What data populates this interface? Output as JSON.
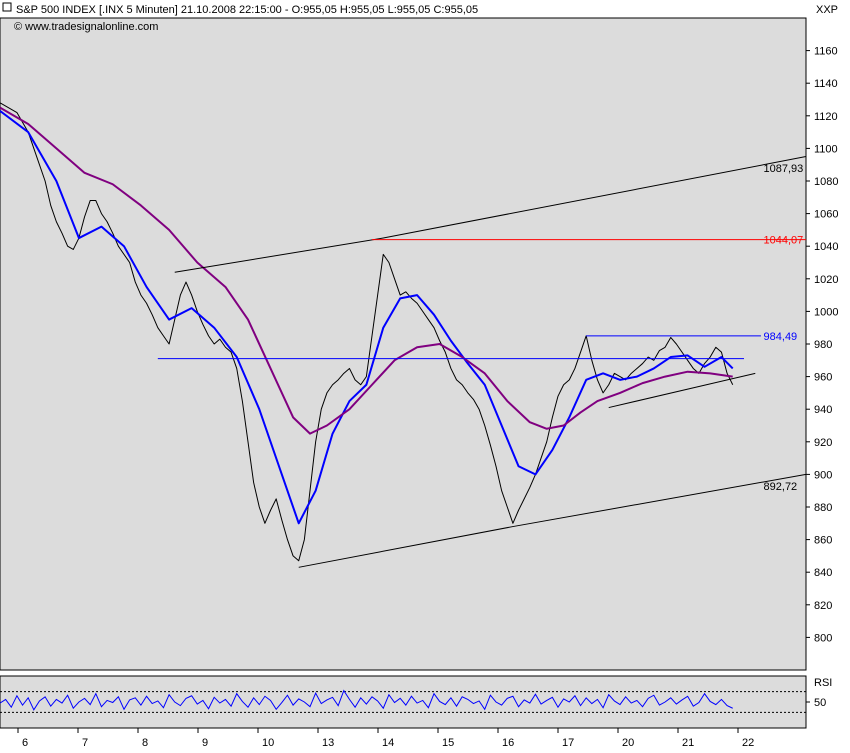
{
  "header": {
    "title": "S&P 500 INDEX [.INX  5 Minuten] 21.10.2008 22:15:00 - O:955,05 H:955,05 L:955,05 C:955,05",
    "source": "© www.tradesignalonline.com",
    "exchange": "XXP"
  },
  "colors": {
    "background": "#ffffff",
    "panel": "#dcdcdc",
    "price": "#000000",
    "fast_ma": "#0000ff",
    "slow_ma": "#800080",
    "resistance": "#ff0000",
    "neckline": "#0000ff"
  },
  "chart_data": [
    {
      "type": "line",
      "title": "S&P 500 INDEX [.INX  5 Minuten]",
      "ylim": [
        780,
        1180
      ],
      "y_ticks": [
        800,
        820,
        840,
        860,
        880,
        900,
        920,
        940,
        960,
        980,
        1000,
        1020,
        1040,
        1060,
        1080,
        1100,
        1120,
        1140,
        1160
      ],
      "x_tick_labels": [
        "6",
        "7",
        "8",
        "9",
        "10",
        "13",
        "14",
        "15",
        "16",
        "17",
        "20",
        "21",
        "22"
      ],
      "series": [
        {
          "name": "",
          "role": "price",
          "color": "#000000",
          "points": [
            [
              0,
              1128
            ],
            [
              3,
              1122
            ],
            [
              5,
              1110
            ],
            [
              7,
              1090
            ],
            [
              8,
              1080
            ],
            [
              9,
              1065
            ],
            [
              10,
              1055
            ],
            [
              11,
              1048
            ],
            [
              12,
              1040
            ],
            [
              13,
              1038
            ],
            [
              14,
              1045
            ],
            [
              15,
              1058
            ],
            [
              16,
              1068
            ],
            [
              17,
              1068
            ],
            [
              18,
              1060
            ],
            [
              19,
              1055
            ],
            [
              20,
              1048
            ],
            [
              21,
              1040
            ],
            [
              22,
              1035
            ],
            [
              23,
              1030
            ],
            [
              24,
              1018
            ],
            [
              25,
              1010
            ],
            [
              26,
              1005
            ],
            [
              27,
              998
            ],
            [
              28,
              990
            ],
            [
              29,
              985
            ],
            [
              30,
              980
            ],
            [
              31,
              995
            ],
            [
              32,
              1010
            ],
            [
              33,
              1018
            ],
            [
              34,
              1010
            ],
            [
              35,
              1000
            ],
            [
              36,
              992
            ],
            [
              37,
              985
            ],
            [
              38,
              980
            ],
            [
              39,
              983
            ],
            [
              40,
              978
            ],
            [
              41,
              975
            ],
            [
              42,
              965
            ],
            [
              43,
              945
            ],
            [
              44,
              920
            ],
            [
              45,
              895
            ],
            [
              46,
              880
            ],
            [
              47,
              870
            ],
            [
              48,
              878
            ],
            [
              49,
              885
            ],
            [
              50,
              872
            ],
            [
              51,
              860
            ],
            [
              52,
              850
            ],
            [
              53,
              847
            ],
            [
              54,
              860
            ],
            [
              55,
              890
            ],
            [
              56,
              920
            ],
            [
              57,
              940
            ],
            [
              58,
              950
            ],
            [
              59,
              955
            ],
            [
              60,
              958
            ],
            [
              61,
              962
            ],
            [
              62,
              965
            ],
            [
              63,
              958
            ],
            [
              64,
              955
            ],
            [
              65,
              960
            ],
            [
              66,
              985
            ],
            [
              67,
              1010
            ],
            [
              68,
              1035
            ],
            [
              69,
              1030
            ],
            [
              70,
              1020
            ],
            [
              71,
              1010
            ],
            [
              72,
              1012
            ],
            [
              73,
              1008
            ],
            [
              74,
              1005
            ],
            [
              75,
              1000
            ],
            [
              76,
              995
            ],
            [
              77,
              990
            ],
            [
              78,
              982
            ],
            [
              79,
              975
            ],
            [
              80,
              965
            ],
            [
              81,
              958
            ],
            [
              82,
              955
            ],
            [
              83,
              950
            ],
            [
              84,
              946
            ],
            [
              85,
              940
            ],
            [
              86,
              930
            ],
            [
              87,
              918
            ],
            [
              88,
              905
            ],
            [
              89,
              890
            ],
            [
              90,
              880
            ],
            [
              91,
              870
            ],
            [
              92,
              878
            ],
            [
              93,
              885
            ],
            [
              94,
              892
            ],
            [
              95,
              900
            ],
            [
              96,
              910
            ],
            [
              97,
              920
            ],
            [
              98,
              935
            ],
            [
              99,
              948
            ],
            [
              100,
              955
            ],
            [
              101,
              958
            ],
            [
              102,
              965
            ],
            [
              103,
              975
            ],
            [
              104,
              985
            ],
            [
              105,
              970
            ],
            [
              106,
              958
            ],
            [
              107,
              950
            ],
            [
              108,
              955
            ],
            [
              109,
              962
            ],
            [
              110,
              960
            ],
            [
              111,
              958
            ],
            [
              112,
              962
            ],
            [
              113,
              965
            ],
            [
              114,
              968
            ],
            [
              115,
              972
            ],
            [
              116,
              970
            ],
            [
              117,
              976
            ],
            [
              118,
              978
            ],
            [
              119,
              984
            ],
            [
              120,
              980
            ],
            [
              121,
              975
            ],
            [
              122,
              970
            ],
            [
              123,
              965
            ],
            [
              124,
              962
            ],
            [
              125,
              968
            ],
            [
              126,
              972
            ],
            [
              127,
              978
            ],
            [
              128,
              975
            ],
            [
              129,
              962
            ],
            [
              130,
              955
            ]
          ]
        },
        {
          "name": "",
          "role": "fast moving average",
          "color": "#0000ff",
          "points": [
            [
              0,
              1123
            ],
            [
              5,
              1110
            ],
            [
              10,
              1080
            ],
            [
              14,
              1045
            ],
            [
              18,
              1052
            ],
            [
              22,
              1040
            ],
            [
              26,
              1015
            ],
            [
              30,
              995
            ],
            [
              34,
              1002
            ],
            [
              38,
              990
            ],
            [
              42,
              972
            ],
            [
              46,
              940
            ],
            [
              50,
              900
            ],
            [
              53,
              870
            ],
            [
              56,
              890
            ],
            [
              59,
              925
            ],
            [
              62,
              945
            ],
            [
              65,
              955
            ],
            [
              68,
              990
            ],
            [
              71,
              1008
            ],
            [
              74,
              1010
            ],
            [
              77,
              998
            ],
            [
              80,
              982
            ],
            [
              83,
              968
            ],
            [
              86,
              955
            ],
            [
              89,
              930
            ],
            [
              92,
              905
            ],
            [
              95,
              900
            ],
            [
              98,
              915
            ],
            [
              101,
              935
            ],
            [
              104,
              958
            ],
            [
              107,
              962
            ],
            [
              110,
              958
            ],
            [
              113,
              960
            ],
            [
              116,
              965
            ],
            [
              119,
              972
            ],
            [
              122,
              973
            ],
            [
              125,
              966
            ],
            [
              128,
              972
            ],
            [
              130,
              965
            ]
          ]
        },
        {
          "name": "",
          "role": "slow moving average",
          "color": "#800080",
          "points": [
            [
              0,
              1125
            ],
            [
              5,
              1115
            ],
            [
              10,
              1100
            ],
            [
              15,
              1085
            ],
            [
              20,
              1078
            ],
            [
              25,
              1065
            ],
            [
              30,
              1050
            ],
            [
              35,
              1030
            ],
            [
              40,
              1015
            ],
            [
              44,
              995
            ],
            [
              48,
              965
            ],
            [
              52,
              935
            ],
            [
              55,
              925
            ],
            [
              58,
              930
            ],
            [
              62,
              940
            ],
            [
              66,
              955
            ],
            [
              70,
              970
            ],
            [
              74,
              978
            ],
            [
              78,
              980
            ],
            [
              82,
              972
            ],
            [
              86,
              962
            ],
            [
              90,
              945
            ],
            [
              94,
              932
            ],
            [
              97,
              928
            ],
            [
              100,
              930
            ],
            [
              103,
              938
            ],
            [
              106,
              945
            ],
            [
              110,
              950
            ],
            [
              114,
              956
            ],
            [
              118,
              960
            ],
            [
              122,
              963
            ],
            [
              126,
              962
            ],
            [
              130,
              960
            ]
          ]
        },
        {
          "name": "",
          "role": "upper trend channel",
          "color": "#000000",
          "points": [
            [
              31,
              1024
            ],
            [
              68,
              1045
            ],
            [
              143,
              1095
            ]
          ]
        },
        {
          "name": "",
          "role": "lower trend channel",
          "color": "#000000",
          "points": [
            [
              53,
              843
            ],
            [
              91,
              868
            ],
            [
              143,
              900
            ]
          ]
        },
        {
          "name": "",
          "role": "neckline",
          "color": "#0000ff",
          "points": [
            [
              28,
              971
            ],
            [
              132,
              971
            ]
          ]
        },
        {
          "name": "",
          "role": "triangle top",
          "color": "#0000ff",
          "points": [
            [
              104,
              985
            ],
            [
              135,
              985
            ]
          ]
        },
        {
          "name": "",
          "role": "triangle support",
          "color": "#000000",
          "points": [
            [
              108,
              941
            ],
            [
              134,
              962
            ]
          ]
        }
      ],
      "annotations": [
        {
          "text": "1087,93",
          "x": 136,
          "y": 1088,
          "color": "#000000"
        },
        {
          "text": "1044,07",
          "x": 136,
          "y": 1044,
          "color": "#ff0000"
        },
        {
          "text": "984,49",
          "x": 136,
          "y": 985,
          "color": "#0000ff"
        },
        {
          "text": "892,72",
          "x": 136,
          "y": 893,
          "color": "#000000"
        }
      ],
      "horizontal_lines": [
        {
          "value": 1044.07,
          "from_x": 66,
          "color": "#ff0000"
        }
      ]
    },
    {
      "type": "line",
      "title": "",
      "indicator": "RSI",
      "ylabel": "RSI",
      "ylim": [
        0,
        100
      ],
      "y_ticks": [
        50
      ],
      "reference_lines": [
        30,
        70
      ],
      "series": [
        {
          "name": "",
          "role": "rsi",
          "color": "#0000ff",
          "values": [
            48,
            55,
            40,
            62,
            44,
            58,
            35,
            52,
            60,
            42,
            55,
            48,
            63,
            38,
            50,
            57,
            45,
            66,
            41,
            53,
            49,
            60,
            36,
            54,
            58,
            44,
            61,
            47,
            52,
            39,
            64,
            50,
            43,
            57,
            62,
            46,
            53,
            37,
            59,
            48,
            55,
            42,
            66,
            51,
            40,
            58,
            45,
            61,
            53,
            36,
            49,
            63,
            44,
            56,
            50,
            41,
            67,
            47,
            54,
            59,
            43,
            72,
            55,
            40,
            58,
            46,
            60,
            52,
            38,
            64,
            49,
            57,
            44,
            61,
            48,
            53,
            39,
            66,
            51,
            45,
            58,
            42,
            60,
            55,
            47,
            52,
            36,
            63,
            50,
            44,
            57,
            61,
            41,
            54,
            48,
            65,
            46,
            53,
            59,
            40,
            56,
            50,
            62,
            43,
            58,
            47,
            55,
            39,
            64,
            52,
            45,
            60,
            48,
            53,
            41,
            57,
            63,
            44,
            50,
            58,
            46,
            54,
            61,
            42,
            49,
            66,
            51,
            45,
            55,
            43,
            38
          ]
        }
      ]
    }
  ]
}
